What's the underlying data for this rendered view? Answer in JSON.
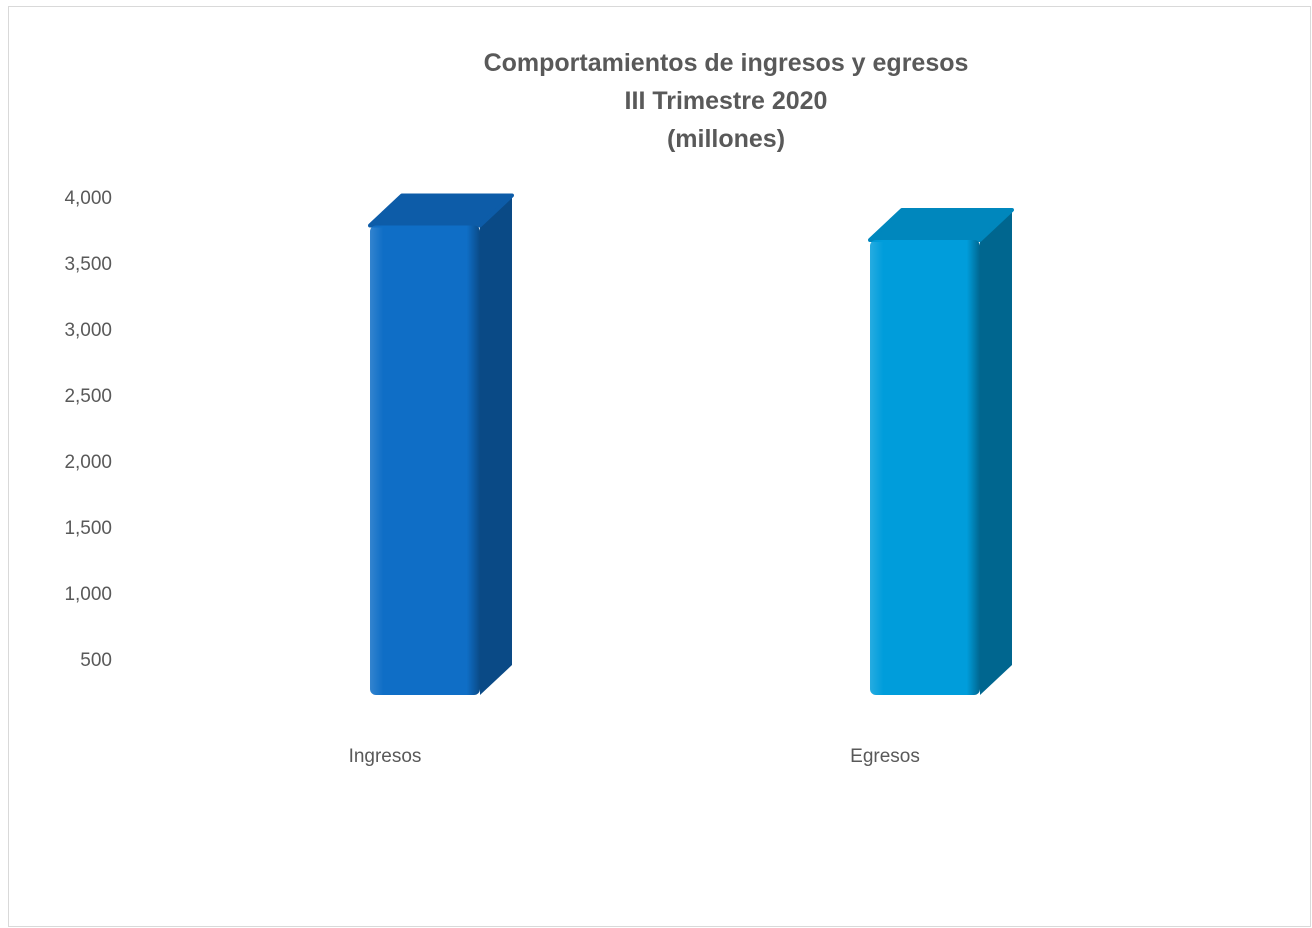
{
  "chart_data": {
    "type": "bar",
    "title_lines": [
      "Comportamientos de ingresos y egresos",
      "III Trimestre 2020",
      "(millones)"
    ],
    "categories": [
      "Ingresos",
      "Egresos"
    ],
    "values": [
      3830,
      3720
    ],
    "bar_colors": [
      {
        "front": "#0f6ec6",
        "side": "#0a4a86",
        "top": "#0d5ca8"
      },
      {
        "front": "#009ddb",
        "side": "#00668f",
        "top": "#0087bd"
      }
    ],
    "y_ticks": [
      "500",
      "1,000",
      "1,500",
      "2,000",
      "2,500",
      "3,000",
      "3,500",
      "4,000"
    ],
    "y_tick_values": [
      500,
      1000,
      1500,
      2000,
      2500,
      3000,
      3500,
      4000
    ],
    "ylim": [
      0,
      4000
    ],
    "grid": false,
    "legend": "none"
  }
}
